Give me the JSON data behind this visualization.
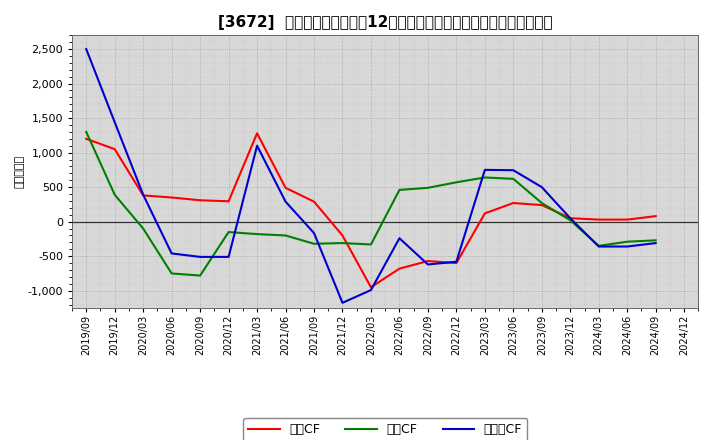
{
  "title": "[3672]  キャッシュフローの12か月移動合計の対前年同期増減額の推移",
  "ylabel": "（百万円）",
  "xlabels": [
    "2019/09",
    "2019/12",
    "2020/03",
    "2020/06",
    "2020/09",
    "2020/12",
    "2021/03",
    "2021/06",
    "2021/09",
    "2021/12",
    "2022/03",
    "2022/06",
    "2022/09",
    "2022/12",
    "2023/03",
    "2023/06",
    "2023/09",
    "2023/12",
    "2024/03",
    "2024/06",
    "2024/09",
    "2024/12"
  ],
  "operating_cf": [
    1200,
    1050,
    380,
    350,
    310,
    295,
    1280,
    490,
    290,
    -200,
    -950,
    -680,
    -570,
    -600,
    120,
    270,
    240,
    50,
    30,
    30,
    80,
    null
  ],
  "investing_cf": [
    1300,
    390,
    -100,
    -750,
    -780,
    -150,
    -180,
    -200,
    -320,
    -310,
    -330,
    460,
    490,
    570,
    640,
    620,
    270,
    20,
    -350,
    -290,
    -270,
    null
  ],
  "free_cf": [
    2500,
    1440,
    390,
    -460,
    -510,
    -510,
    1100,
    290,
    -165,
    -1175,
    -990,
    -240,
    -620,
    -580,
    750,
    745,
    500,
    50,
    -360,
    -360,
    -310,
    null
  ],
  "operating_color": "#ff0000",
  "investing_color": "#008000",
  "free_color": "#0000cd",
  "legend_labels": [
    "営業CF",
    "投資CF",
    "フリーCF"
  ],
  "ylim": [
    -1250,
    2700
  ],
  "yticks": [
    -1000,
    -500,
    0,
    500,
    1000,
    1500,
    2000,
    2500
  ],
  "plot_bg_color": "#d8d8d8",
  "fig_bg_color": "#ffffff",
  "grid_color": "#aaaaaa",
  "title_fontsize": 11,
  "axis_fontsize": 8
}
